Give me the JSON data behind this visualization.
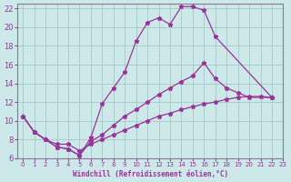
{
  "background_color": "#cce8e8",
  "grid_color": "#aacccc",
  "line_color": "#993399",
  "xlim": [
    -0.5,
    23
  ],
  "ylim": [
    6,
    22.5
  ],
  "xticks": [
    0,
    1,
    2,
    3,
    4,
    5,
    6,
    7,
    8,
    9,
    10,
    11,
    12,
    13,
    14,
    15,
    16,
    17,
    18,
    19,
    20,
    21,
    22,
    23
  ],
  "yticks": [
    6,
    8,
    10,
    12,
    14,
    16,
    18,
    20,
    22
  ],
  "xlabel": "Windchill (Refroidissement éolien,°C)",
  "line1_x": [
    0,
    1,
    2,
    3,
    4,
    5,
    6,
    7,
    8,
    9,
    10,
    11,
    12,
    13,
    14,
    15,
    16,
    17,
    22
  ],
  "line1_y": [
    10.5,
    8.8,
    8.0,
    7.2,
    7.0,
    6.3,
    8.2,
    11.8,
    13.5,
    15.2,
    18.5,
    20.5,
    21.0,
    20.3,
    22.2,
    22.2,
    21.8,
    19.0,
    12.5
  ],
  "line2_x": [
    0,
    1,
    2,
    3,
    4,
    5,
    6,
    7,
    8,
    9,
    10,
    11,
    12,
    13,
    14,
    15,
    16,
    17,
    18,
    19,
    20,
    22
  ],
  "line2_y": [
    10.5,
    8.8,
    8.0,
    7.2,
    7.0,
    6.3,
    7.8,
    8.5,
    9.5,
    10.5,
    11.2,
    12.0,
    12.8,
    13.5,
    14.2,
    14.8,
    16.2,
    14.5,
    13.5,
    13.0,
    12.5,
    12.5
  ],
  "line3_x": [
    0,
    1,
    2,
    3,
    4,
    5,
    6,
    7,
    8,
    9,
    10,
    11,
    12,
    13,
    14,
    15,
    16,
    17,
    18,
    19,
    20,
    21,
    22
  ],
  "line3_y": [
    10.5,
    8.8,
    8.0,
    7.5,
    7.5,
    6.8,
    7.5,
    8.0,
    8.5,
    9.0,
    9.5,
    10.0,
    10.5,
    10.8,
    11.2,
    11.5,
    11.8,
    12.0,
    12.3,
    12.5,
    12.6,
    12.6,
    12.5
  ]
}
